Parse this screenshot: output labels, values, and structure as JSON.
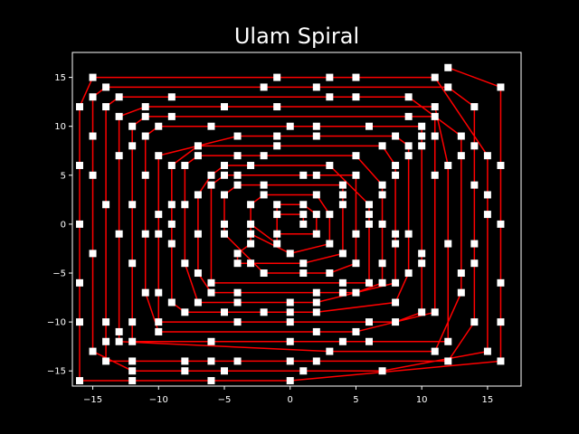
{
  "chart_data": {
    "type": "line",
    "title": "Ulam Spiral",
    "xlabel": "",
    "ylabel": "",
    "xlim": [
      -16.55,
      17.55
    ],
    "ylim": [
      -16.55,
      17.55
    ],
    "xticks": [
      -15,
      -10,
      -5,
      0,
      5,
      10,
      15
    ],
    "yticks": [
      -15,
      -10,
      -5,
      0,
      5,
      10,
      15
    ],
    "grid": false,
    "legend": false,
    "colors": {
      "background": "#000000",
      "line": "#ff0000",
      "marker": "#ffffff",
      "text": "#ffffff",
      "axes": "#ffffff"
    },
    "series": [
      {
        "marker": "square",
        "points": [
          [
            1,
            0
          ],
          [
            1,
            1
          ],
          [
            -1,
            1
          ],
          [
            -1,
            -1
          ],
          [
            2,
            -1
          ],
          [
            2,
            1
          ],
          [
            1,
            2
          ],
          [
            -1,
            2
          ],
          [
            -1,
            -2
          ],
          [
            -3,
            0
          ],
          [
            -3,
            -1
          ],
          [
            0,
            -3
          ],
          [
            3,
            -2
          ],
          [
            3,
            1
          ],
          [
            2,
            3
          ],
          [
            -2,
            3
          ],
          [
            -3,
            2
          ],
          [
            -3,
            -2
          ],
          [
            -4,
            -3
          ],
          [
            -4,
            -4
          ],
          [
            -3,
            -4
          ],
          [
            1,
            -4
          ],
          [
            4,
            -3
          ],
          [
            4,
            2
          ],
          [
            4,
            3
          ],
          [
            4,
            4
          ],
          [
            -2,
            4
          ],
          [
            -4,
            4
          ],
          [
            -5,
            3
          ],
          [
            -5,
            0
          ],
          [
            -5,
            -1
          ],
          [
            -2,
            -5
          ],
          [
            1,
            -5
          ],
          [
            3,
            -5
          ],
          [
            5,
            -4
          ],
          [
            5,
            -1
          ],
          [
            5,
            5
          ],
          [
            2,
            5
          ],
          [
            1,
            5
          ],
          [
            -4,
            5
          ],
          [
            -5,
            5
          ],
          [
            -6,
            4
          ],
          [
            -6,
            -6
          ],
          [
            4,
            -6
          ],
          [
            6,
            -6
          ],
          [
            6,
            0
          ],
          [
            6,
            1
          ],
          [
            6,
            2
          ],
          [
            3,
            6
          ],
          [
            -3,
            6
          ],
          [
            -5,
            6
          ],
          [
            -6,
            5
          ],
          [
            -7,
            3
          ],
          [
            -7,
            -1
          ],
          [
            -7,
            -5
          ],
          [
            -6,
            -7
          ],
          [
            -4,
            -7
          ],
          [
            2,
            -7
          ],
          [
            4,
            -7
          ],
          [
            5,
            -7
          ],
          [
            7,
            -6
          ],
          [
            7,
            -4
          ],
          [
            7,
            0
          ],
          [
            7,
            3
          ],
          [
            7,
            4
          ],
          [
            5,
            7
          ],
          [
            -2,
            7
          ],
          [
            -4,
            7
          ],
          [
            -7,
            7
          ],
          [
            -8,
            6
          ],
          [
            -8,
            2
          ],
          [
            -8,
            -4
          ],
          [
            -7,
            -8
          ],
          [
            -4,
            -8
          ],
          [
            0,
            -8
          ],
          [
            2,
            -8
          ],
          [
            8,
            -6
          ],
          [
            8,
            -2
          ],
          [
            8,
            -1
          ],
          [
            8,
            5
          ],
          [
            8,
            6
          ],
          [
            7,
            8
          ],
          [
            -1,
            8
          ],
          [
            -7,
            8
          ],
          [
            -9,
            6
          ],
          [
            -9,
            2
          ],
          [
            -9,
            0
          ],
          [
            -9,
            -2
          ],
          [
            -9,
            -8
          ],
          [
            -8,
            -9
          ],
          [
            -5,
            -9
          ],
          [
            -2,
            -9
          ],
          [
            0,
            -9
          ],
          [
            2,
            -9
          ],
          [
            8,
            -8
          ],
          [
            9,
            -5
          ],
          [
            9,
            -1
          ],
          [
            9,
            7
          ],
          [
            9,
            8
          ],
          [
            8,
            9
          ],
          [
            2,
            9
          ],
          [
            -1,
            9
          ],
          [
            -4,
            9
          ],
          [
            -10,
            7
          ],
          [
            -10,
            1
          ],
          [
            -10,
            -1
          ],
          [
            -10,
            -7
          ],
          [
            -10,
            -10
          ],
          [
            -4,
            -10
          ],
          [
            0,
            -10
          ],
          [
            6,
            -10
          ],
          [
            8,
            -10
          ],
          [
            10,
            -9
          ],
          [
            10,
            -4
          ],
          [
            10,
            -3
          ],
          [
            10,
            8
          ],
          [
            10,
            9
          ],
          [
            10,
            10
          ],
          [
            6,
            10
          ],
          [
            2,
            10
          ],
          [
            0,
            10
          ],
          [
            -6,
            10
          ],
          [
            -10,
            10
          ],
          [
            -11,
            9
          ],
          [
            -11,
            5
          ],
          [
            -11,
            -1
          ],
          [
            -11,
            -7
          ],
          [
            -10,
            -11
          ],
          [
            2,
            -11
          ],
          [
            5,
            -11
          ],
          [
            11,
            -9
          ],
          [
            11,
            5
          ],
          [
            11,
            9
          ],
          [
            11,
            11
          ],
          [
            9,
            11
          ],
          [
            -9,
            11
          ],
          [
            -11,
            11
          ],
          [
            -12,
            10
          ],
          [
            -12,
            8
          ],
          [
            -12,
            2
          ],
          [
            -12,
            -4
          ],
          [
            -12,
            -10
          ],
          [
            -12,
            -12
          ],
          [
            -6,
            -12
          ],
          [
            0,
            -12
          ],
          [
            4,
            -12
          ],
          [
            6,
            -12
          ],
          [
            12,
            -12
          ],
          [
            12,
            -2
          ],
          [
            12,
            6
          ],
          [
            11,
            12
          ],
          [
            -1,
            12
          ],
          [
            -5,
            12
          ],
          [
            -11,
            12
          ],
          [
            -13,
            11
          ],
          [
            -13,
            7
          ],
          [
            -13,
            -1
          ],
          [
            -13,
            -11
          ],
          [
            -13,
            -12
          ],
          [
            3,
            -13
          ],
          [
            11,
            -13
          ],
          [
            13,
            -7
          ],
          [
            13,
            -5
          ],
          [
            13,
            7
          ],
          [
            13,
            9
          ],
          [
            9,
            13
          ],
          [
            5,
            13
          ],
          [
            3,
            13
          ],
          [
            -9,
            13
          ],
          [
            -13,
            13
          ],
          [
            -14,
            12
          ],
          [
            -14,
            2
          ],
          [
            -14,
            -10
          ],
          [
            -14,
            -12
          ],
          [
            -14,
            -14
          ],
          [
            -12,
            -14
          ],
          [
            -8,
            -14
          ],
          [
            -6,
            -14
          ],
          [
            -4,
            -14
          ],
          [
            0,
            -14
          ],
          [
            2,
            -14
          ],
          [
            12,
            -14
          ],
          [
            14,
            -10
          ],
          [
            14,
            -4
          ],
          [
            14,
            -2
          ],
          [
            14,
            4
          ],
          [
            14,
            8
          ],
          [
            14,
            12
          ],
          [
            12,
            14
          ],
          [
            2,
            14
          ],
          [
            -2,
            14
          ],
          [
            -14,
            14
          ],
          [
            -15,
            13
          ],
          [
            -15,
            9
          ],
          [
            -15,
            5
          ],
          [
            -15,
            -3
          ],
          [
            -15,
            -13
          ],
          [
            -12,
            -15
          ],
          [
            -8,
            -15
          ],
          [
            -5,
            -15
          ],
          [
            1,
            -15
          ],
          [
            7,
            -15
          ],
          [
            15,
            -13
          ],
          [
            15,
            1
          ],
          [
            15,
            3
          ],
          [
            15,
            7
          ],
          [
            11,
            15
          ],
          [
            5,
            15
          ],
          [
            3,
            15
          ],
          [
            -1,
            15
          ],
          [
            -15,
            15
          ],
          [
            -16,
            12
          ],
          [
            -16,
            6
          ],
          [
            -16,
            0
          ],
          [
            -16,
            -6
          ],
          [
            -16,
            -10
          ],
          [
            -16,
            -16
          ],
          [
            -12,
            -16
          ],
          [
            -6,
            -16
          ],
          [
            0,
            -16
          ],
          [
            16,
            -14
          ],
          [
            16,
            -10
          ],
          [
            16,
            -6
          ],
          [
            16,
            0
          ],
          [
            16,
            6
          ],
          [
            16,
            14
          ],
          [
            12,
            16
          ]
        ]
      }
    ]
  }
}
